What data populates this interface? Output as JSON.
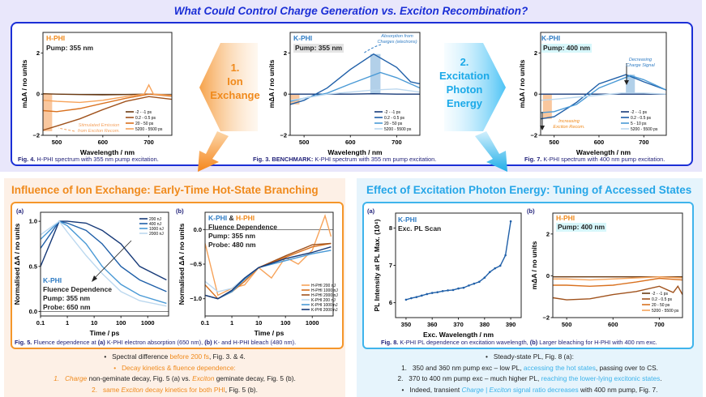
{
  "header": {
    "title": "What Could Control Charge Generation  vs.  Exciton Recombination?"
  },
  "colors": {
    "accent_blue": "#1b2fd6",
    "orange": "#f08a1c",
    "cyan": "#25a6e8",
    "k_phi": "#2f7cc4"
  },
  "top": {
    "arrow1": {
      "num": "1.",
      "l1": "Ion",
      "l2": "Exchange"
    },
    "arrow2": {
      "num": "2.",
      "l1": "Excitation",
      "l2": "Photon",
      "l3": "Energy"
    },
    "fig4": {
      "label": "H-PHI",
      "pump": "Pump: 355 nm",
      "note1": "Stimulated Emission",
      "note2": "from Exciton Recom.",
      "cap_num": "Fig. 4.",
      "cap": " H-PHI spectrum with 355 nm pump excitation."
    },
    "fig3": {
      "label": "K-PHI",
      "pump": "Pump: 355 nm",
      "note1": "Absorption from",
      "note2": "Charges (electrons)",
      "cap_num": "Fig. 3. BENCHMARK:",
      "cap": " K-PHI spectrum with 355 nm pump excitation."
    },
    "fig7": {
      "label": "K-PHI",
      "pump": "Pump: 400 nm",
      "note1": "Decreasing",
      "note2": "Charge Signal",
      "note3": "Increasing",
      "note4": "Exciton Recom.",
      "cap_num": "Fig. 7.",
      "cap": " K-PHI spectrum with 400 nm pump excitation."
    }
  },
  "left": {
    "title": "Influence of Ion Exchange: Early-Time Hot-State Branching",
    "a": "(a)",
    "b": "(b)",
    "a_label": "K-PHI",
    "a_l2": "Fluence Dependence",
    "a_l3": "Pump: 355 nm",
    "a_l4": "Probe: 650 nm",
    "b_k": "K-PHI",
    "b_amp": " & ",
    "b_h": "H-PHI",
    "b_l2": "Fluence Dependence",
    "b_l3": "Pump: 355 nm",
    "b_l4": "Probe: 480 nm",
    "cap": {
      "n": "Fig. 5.",
      "t1": " Fluence dependence at ",
      "a": "(a)",
      "t2": " K-PHI electron absorption (650 nm), ",
      "b": "(b)",
      "t3": " K- and H-PHI bleach (480 nm)."
    },
    "bullets": {
      "b1": {
        "bullet": "•",
        "t1": "Spectral difference ",
        "t2": "before 200 fs",
        "t3": ", Fig. 3. & 4."
      },
      "b2": {
        "bullet": "•",
        "t1": "Decay kinetics & fluence dependence:"
      },
      "b3": {
        "num": "1.",
        "t1": "Charge",
        "t2": " non-geminate decay, Fig. 5 (a) vs. ",
        "t3": "Exciton",
        "t4": " geminate decay, Fig. 5 (b)."
      },
      "b4": {
        "num": "2.",
        "t1": "same ",
        "t2": "Exciton",
        "t3": " decay kinetics for both PHI",
        "t4": ", Fig. 5 (b)."
      }
    }
  },
  "right": {
    "title": "Effect of Excitation Photon Energy: Tuning of Accessed States",
    "a": "(a)",
    "b": "(b)",
    "a_label": "K-PHI",
    "a_l2": "Exc. PL Scan",
    "b_label": "H-PHI",
    "b_l2": "Pump: 400 nm",
    "cap": {
      "n": "Fig. 8.",
      "t1": " K-PHI PL dependence on excitation wavelength, ",
      "b": "(b)",
      "t2": " Larger bleaching for H-PHI with 400 nm exc."
    },
    "bullets": {
      "b1": {
        "bullet": "•",
        "t1": "Steady-state PL, Fig. 8 (a):"
      },
      "b2": {
        "num": "1.",
        "t1": "350 and 360 nm pump exc – low PL, ",
        "t2": "accessing the hot states",
        "t3": ", passing over to CS."
      },
      "b3": {
        "num": "2.",
        "t1": "370 to 400 nm pump exc – much higher PL, ",
        "t2": "reaching the lower-lying excitonic states",
        "t3": "."
      },
      "b4": {
        "bullet": "•",
        "t1": "Indeed, transient ",
        "t2": "Charge | Exciton",
        "t3": " signal ratio decreases",
        "t4": " with 400 nm pump, Fig. 7."
      }
    }
  },
  "chart_data": [
    {
      "id": "fig4",
      "type": "line",
      "xlabel": "Wavelength / nm",
      "ylabel": "mΔA / no units",
      "xlim": [
        470,
        750
      ],
      "ylim": [
        -2,
        3
      ],
      "xticks": [
        500,
        600,
        700
      ],
      "yticks": [
        -2,
        0,
        2
      ],
      "grid": false,
      "legend": "bottom-right",
      "zero_line": true,
      "bands": [
        {
          "x": [
            470,
            490
          ],
          "y": [
            -1.8,
            0
          ],
          "color": "#f5a25e"
        }
      ],
      "series": [
        {
          "name": "-2 - -1 ps",
          "color": "#6b3a12",
          "x": [
            470,
            500,
            550,
            600,
            650,
            700,
            750
          ],
          "y": [
            0.02,
            0,
            -0.02,
            -0.03,
            -0.02,
            0,
            -0.05
          ]
        },
        {
          "name": "0.2 - 0.5 ps",
          "color": "#a0521c",
          "x": [
            470,
            500,
            550,
            600,
            650,
            700,
            750
          ],
          "y": [
            -1.75,
            -1.55,
            -1.2,
            -0.75,
            -0.35,
            -0.12,
            -0.25
          ]
        },
        {
          "name": "20 - 50 ps",
          "color": "#d9711f",
          "x": [
            470,
            500,
            550,
            600,
            650,
            700,
            750
          ],
          "y": [
            -0.8,
            -0.85,
            -0.7,
            -0.45,
            -0.2,
            0.0,
            -0.1
          ]
        },
        {
          "name": "5200 - 5500 ps",
          "color": "#f7a35a",
          "x": [
            470,
            500,
            550,
            600,
            650,
            690,
            700,
            710,
            750
          ],
          "y": [
            -0.3,
            -0.35,
            -0.4,
            -0.3,
            -0.12,
            0.0,
            0.45,
            0.0,
            -0.05
          ]
        }
      ]
    },
    {
      "id": "fig3",
      "type": "line",
      "xlabel": "Wavelength / nm",
      "ylabel": "mΔA / no units",
      "xlim": [
        470,
        750
      ],
      "ylim": [
        -2,
        3
      ],
      "xticks": [
        500,
        600,
        700
      ],
      "yticks": [
        -2,
        0,
        2
      ],
      "grid": false,
      "legend": "bottom-right",
      "zero_line": true,
      "bands": [
        {
          "x": [
            470,
            490
          ],
          "y": [
            -0.5,
            0
          ],
          "color": "#f5a25e"
        },
        {
          "x": [
            643,
            665
          ],
          "y": [
            0,
            1.95
          ],
          "color": "#7fb0db"
        }
      ],
      "series": [
        {
          "name": "-2 - -1 ps",
          "color": "#173a78",
          "x": [
            470,
            500,
            550,
            600,
            650,
            700,
            750
          ],
          "y": [
            0,
            0,
            0,
            0,
            0.02,
            0,
            0
          ]
        },
        {
          "name": "0.2 - 0.5 ps",
          "color": "#1f5fa8",
          "x": [
            470,
            500,
            550,
            600,
            650,
            700,
            730,
            750
          ],
          "y": [
            -0.5,
            -0.3,
            0.3,
            1.2,
            1.95,
            1.3,
            0.6,
            0.5
          ]
        },
        {
          "name": "20 - 50 ps",
          "color": "#4a9ad6",
          "x": [
            470,
            500,
            550,
            600,
            665,
            700,
            750
          ],
          "y": [
            -0.35,
            -0.2,
            0.05,
            0.5,
            1.05,
            0.8,
            0.3
          ]
        },
        {
          "name": "5200 - 5500 ps",
          "color": "#bcd8ef",
          "x": [
            470,
            500,
            550,
            600,
            650,
            700,
            750
          ],
          "y": [
            -0.3,
            -0.2,
            0,
            0.1,
            0.2,
            0.25,
            0.1
          ]
        }
      ]
    },
    {
      "id": "fig7",
      "type": "line",
      "xlabel": "Wavelength / nm",
      "ylabel": "mΔA / no units",
      "xlim": [
        470,
        750
      ],
      "ylim": [
        -2,
        3
      ],
      "xticks": [
        500,
        600,
        700
      ],
      "yticks": [
        -2,
        0,
        2
      ],
      "grid": false,
      "legend": "bottom-right",
      "zero_line": true,
      "bands": [
        {
          "x": [
            475,
            495
          ],
          "y": [
            -1.2,
            0
          ],
          "color": "#f5a25e"
        },
        {
          "x": [
            660,
            680
          ],
          "y": [
            0,
            0.95
          ],
          "color": "#7fb0db"
        }
      ],
      "series": [
        {
          "name": "-2 - -1 ps",
          "color": "#173a78",
          "x": [
            470,
            550,
            650,
            750
          ],
          "y": [
            0,
            0,
            0,
            0
          ]
        },
        {
          "name": "0.2 - 0.5 ps",
          "color": "#1f5fa8",
          "x": [
            470,
            500,
            550,
            600,
            660,
            700,
            750
          ],
          "y": [
            -1.2,
            -1.1,
            -0.4,
            0.5,
            0.95,
            0.6,
            0.2
          ]
        },
        {
          "name": "5 - 10 ps",
          "color": "#4a9ad6",
          "x": [
            470,
            500,
            550,
            600,
            670,
            700,
            750
          ],
          "y": [
            -0.9,
            -0.85,
            -0.5,
            0.3,
            0.9,
            0.7,
            0.2
          ]
        },
        {
          "name": "5200 - 5500 ps",
          "color": "#bcd8ef",
          "x": [
            470,
            500,
            550,
            600,
            650,
            700,
            750
          ],
          "y": [
            -0.3,
            -0.25,
            -0.15,
            -0.05,
            0.05,
            0.05,
            0
          ]
        }
      ]
    },
    {
      "id": "fig5a",
      "type": "line",
      "xlabel": "Time / ps",
      "ylabel": "Normalised ΔA / no units",
      "xscale": "log",
      "xlim": [
        0.1,
        6000
      ],
      "ylim": [
        -0.05,
        1.1
      ],
      "xticks": [
        0.1,
        1,
        10,
        100,
        1000
      ],
      "yticks": [
        0.0,
        0.5,
        1.0
      ],
      "grid": false,
      "legend": "top-right",
      "zero_line": true,
      "series": [
        {
          "name": "200 nJ",
          "color": "#173a78",
          "x": [
            0.1,
            0.5,
            1,
            5,
            20,
            100,
            500,
            5000
          ],
          "y": [
            0.5,
            1.0,
            1.0,
            0.98,
            0.9,
            0.75,
            0.5,
            0.35
          ]
        },
        {
          "name": "400 nJ",
          "color": "#1f5fa8",
          "x": [
            0.1,
            0.5,
            1,
            5,
            20,
            100,
            500,
            5000
          ],
          "y": [
            0.7,
            1.0,
            0.98,
            0.9,
            0.75,
            0.5,
            0.35,
            0.22
          ]
        },
        {
          "name": "1000 nJ",
          "color": "#4a9ad6",
          "x": [
            0.1,
            0.5,
            1,
            5,
            20,
            100,
            500,
            5000
          ],
          "y": [
            0.8,
            1.0,
            0.95,
            0.75,
            0.5,
            0.3,
            0.18,
            0.09
          ]
        },
        {
          "name": "2000 nJ",
          "color": "#bcd8ef",
          "x": [
            0.1,
            0.5,
            1,
            5,
            20,
            100,
            500,
            5000
          ],
          "y": [
            0.85,
            1.0,
            0.88,
            0.62,
            0.42,
            0.22,
            0.12,
            0.06
          ]
        }
      ]
    },
    {
      "id": "fig5b",
      "type": "line",
      "xlabel": "Time / ps",
      "ylabel": "Normalised ΔA / no units",
      "xscale": "log",
      "xlim": [
        0.1,
        6000
      ],
      "ylim": [
        -1.25,
        0.25
      ],
      "xticks": [
        0.1,
        1,
        10,
        100,
        1000
      ],
      "yticks": [
        -1.0,
        -0.5,
        0.0
      ],
      "grid": false,
      "legend": "bottom-right",
      "zero_line": true,
      "series": [
        {
          "name": "H-PHI 200 nJ",
          "color": "#f7a35a",
          "x": [
            0.1,
            0.3,
            1,
            3,
            10,
            30,
            100,
            300,
            1000,
            3000,
            5000
          ],
          "y": [
            -0.2,
            -0.95,
            -0.85,
            -0.8,
            -0.55,
            -0.7,
            -0.4,
            -0.5,
            -0.3,
            0.2,
            -0.1
          ]
        },
        {
          "name": "H-PHI 1000 nJ",
          "color": "#d9711f",
          "x": [
            0.1,
            0.3,
            1,
            3,
            10,
            100,
            1000,
            5000
          ],
          "y": [
            -0.8,
            -1.0,
            -0.9,
            -0.75,
            -0.55,
            -0.4,
            -0.25,
            -0.2
          ]
        },
        {
          "name": "H-PHI 2000 nJ",
          "color": "#a0521c",
          "x": [
            0.1,
            0.3,
            1,
            3,
            10,
            100,
            1000,
            5000
          ],
          "y": [
            -0.95,
            -1.0,
            -0.88,
            -0.72,
            -0.55,
            -0.38,
            -0.22,
            -0.2
          ]
        },
        {
          "name": "K-PHI 200 nJ",
          "color": "#bcd8ef",
          "x": [
            0.1,
            0.3,
            1,
            3,
            10,
            100,
            1000,
            5000
          ],
          "y": [
            -0.75,
            -0.9,
            -0.85,
            -0.7,
            -0.55,
            -0.45,
            -0.35,
            -0.3
          ]
        },
        {
          "name": "K-PHI 1000 nJ",
          "color": "#4a9ad6",
          "x": [
            0.1,
            0.3,
            1,
            3,
            10,
            100,
            1000,
            5000
          ],
          "y": [
            -0.95,
            -1.0,
            -0.9,
            -0.72,
            -0.55,
            -0.45,
            -0.35,
            -0.3
          ]
        },
        {
          "name": "K-PHI 2000 nJ",
          "color": "#173a78",
          "x": [
            0.1,
            0.3,
            1,
            3,
            10,
            100,
            1000,
            5000
          ],
          "y": [
            -0.95,
            -1.0,
            -0.88,
            -0.7,
            -0.55,
            -0.42,
            -0.33,
            -0.25
          ]
        }
      ]
    },
    {
      "id": "fig8a",
      "type": "line",
      "xlabel": "Exc. Wavelength / nm",
      "ylabel": "PL Intensity at PL Max. (10⁴)",
      "xlim": [
        346,
        394
      ],
      "ylim": [
        5.6,
        8.4
      ],
      "xticks": [
        350,
        360,
        370,
        380,
        390
      ],
      "yticks": [
        6,
        7,
        8
      ],
      "grid": false,
      "markers": true,
      "series": [
        {
          "color": "#1f5fa8",
          "x": [
            350,
            352,
            354,
            356,
            358,
            360,
            362,
            364,
            366,
            368,
            370,
            372,
            374,
            376,
            378,
            380,
            382,
            384,
            386,
            388,
            390
          ],
          "y": [
            6.08,
            6.12,
            6.15,
            6.19,
            6.23,
            6.26,
            6.28,
            6.31,
            6.33,
            6.34,
            6.38,
            6.4,
            6.46,
            6.51,
            6.56,
            6.67,
            6.82,
            6.92,
            6.99,
            7.27,
            8.18
          ]
        }
      ]
    },
    {
      "id": "fig8b",
      "type": "line",
      "xlabel": "",
      "ylabel": "mΔA / no units",
      "xlim": [
        470,
        750
      ],
      "ylim": [
        -2,
        3
      ],
      "xticks": [
        500,
        600,
        700
      ],
      "yticks": [
        -2,
        0,
        2
      ],
      "grid": false,
      "legend": "bottom-right",
      "series": [
        {
          "name": "-2 - -1 ps",
          "color": "#6b3a12",
          "x": [
            470,
            550,
            650,
            750
          ],
          "y": [
            -0.05,
            -0.05,
            -0.05,
            -0.05
          ]
        },
        {
          "name": "0.2 - 0.5 ps",
          "color": "#a0521c",
          "x": [
            470,
            500,
            550,
            600,
            650,
            700,
            730,
            740,
            750
          ],
          "y": [
            -1.05,
            -1.15,
            -1.1,
            -0.9,
            -0.75,
            -0.5,
            -0.8,
            -0.5,
            -0.9
          ]
        },
        {
          "name": "20 - 50 ps",
          "color": "#d9711f",
          "x": [
            470,
            500,
            550,
            600,
            650,
            700,
            750
          ],
          "y": [
            -0.45,
            -0.45,
            -0.5,
            -0.45,
            -0.3,
            -0.12,
            -0.2
          ]
        },
        {
          "name": "5200 - 5500 ps",
          "color": "#f7a35a",
          "x": [
            470,
            500,
            550,
            600,
            650,
            700,
            750
          ],
          "y": [
            -0.15,
            -0.15,
            -0.2,
            -0.15,
            -0.1,
            -0.05,
            -0.1
          ]
        }
      ]
    }
  ]
}
